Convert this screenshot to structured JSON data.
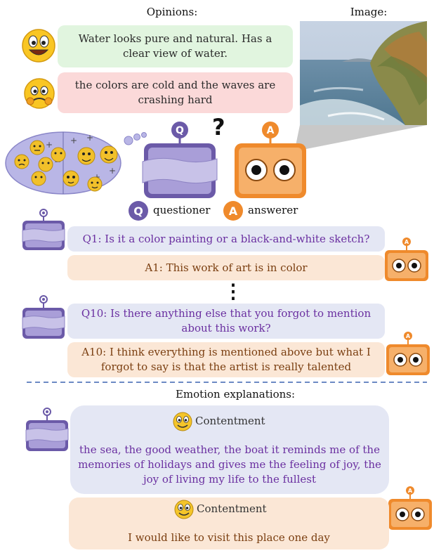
{
  "headers": {
    "opinions": "Opinions:",
    "image": "Image:",
    "explanations": "Emotion explanations:"
  },
  "opinions": [
    {
      "text": "Water looks pure and natural. Has a clear view of water.",
      "sentiment": "happy",
      "color": "#e1f5df"
    },
    {
      "text": "the colors are cold and the waves are crashing hard",
      "sentiment": "worried",
      "color": "#fbd9d9"
    }
  ],
  "question_mark": "?",
  "legend": {
    "q_letter": "Q",
    "questioner": "questioner",
    "a_letter": "A",
    "answerer": "answerer"
  },
  "dialogue": [
    {
      "speaker": "Q",
      "text": "Q1: Is it a color painting or a black-and-white sketch?"
    },
    {
      "speaker": "A",
      "text": "A1: This work of art is in color"
    },
    {
      "speaker": "Q",
      "text": "Q10: Is there anything else that you forgot to mention about this work?"
    },
    {
      "speaker": "A",
      "text": "A10: I think everything is mentioned above but what I forgot to say is that the artist is really talented"
    }
  ],
  "ellipsis": "⋮",
  "explanations": [
    {
      "speaker": "Q",
      "emotion": "Contentment",
      "text": "the sea, the good weather, the boat it reminds me of the memories of holidays and gives me the feeling of joy, the joy of living my life to the fullest"
    },
    {
      "speaker": "A",
      "emotion": "Contentment",
      "text": "I would like to visit this place one day"
    }
  ],
  "colors": {
    "questioner": "#6b5aa8",
    "answerer": "#ef8a2c",
    "divider": "#3b63b0"
  }
}
